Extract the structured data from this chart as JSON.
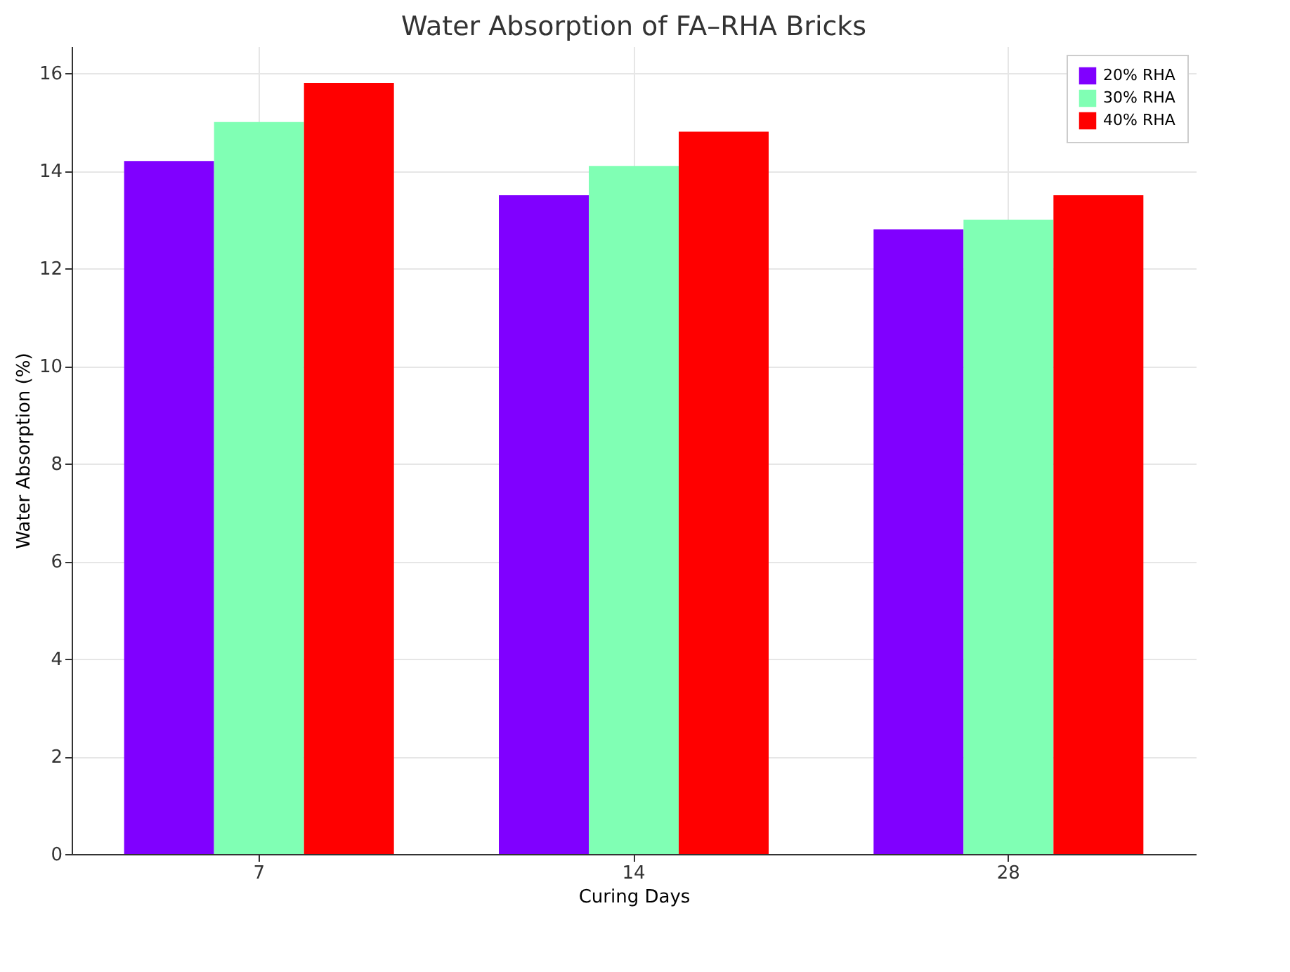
{
  "chart_data": {
    "type": "bar",
    "title": "Water Absorption of FA–RHA Bricks",
    "xlabel": "Curing Days",
    "ylabel": "Water Absorption (%)",
    "categories": [
      "7",
      "14",
      "28"
    ],
    "series": [
      {
        "name": "20% RHA",
        "color": "#8000ff",
        "values": [
          14.2,
          13.5,
          12.8
        ]
      },
      {
        "name": "30% RHA",
        "color": "#80ffb4",
        "values": [
          15.0,
          14.1,
          13.0
        ]
      },
      {
        "name": "40% RHA",
        "color": "#ff0000",
        "values": [
          15.8,
          14.8,
          13.5
        ]
      }
    ],
    "ylim": [
      0,
      16.55
    ],
    "yticks": [
      0,
      2,
      4,
      6,
      8,
      10,
      12,
      14,
      16
    ],
    "grid": true,
    "legend": "top right"
  }
}
